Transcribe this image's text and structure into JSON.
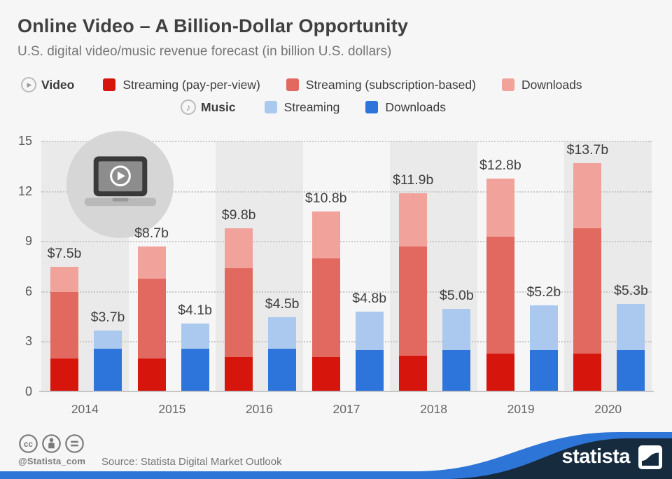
{
  "header": {
    "title": "Online Video – A Billion-Dollar Opportunity",
    "subtitle": "U.S. digital video/music revenue forecast (in billion U.S. dollars)"
  },
  "legend": {
    "video": {
      "label": "Video",
      "items": [
        {
          "label": "Streaming (pay-per-view)",
          "color_key": "video_ppv"
        },
        {
          "label": "Streaming (subscription-based)",
          "color_key": "video_sub"
        },
        {
          "label": "Downloads",
          "color_key": "video_dl"
        }
      ]
    },
    "music": {
      "label": "Music",
      "items": [
        {
          "label": "Streaming",
          "color_key": "music_stream"
        },
        {
          "label": "Downloads",
          "color_key": "music_dl"
        }
      ]
    }
  },
  "chart_data": {
    "type": "bar",
    "stacked": true,
    "title": "Online Video – A Billion-Dollar Opportunity",
    "categories": [
      "2014",
      "2015",
      "2016",
      "2017",
      "2018",
      "2019",
      "2020"
    ],
    "ylim": [
      0,
      15
    ],
    "yticks": [
      0,
      3,
      6,
      9,
      12,
      15
    ],
    "grid": "dotted horizontal",
    "legend_position": "top",
    "groups": [
      {
        "name": "Video",
        "totals": [
          7.5,
          8.7,
          9.8,
          10.8,
          11.9,
          12.8,
          13.7
        ],
        "total_labels": [
          "$7.5b",
          "$8.7b",
          "$9.8b",
          "$10.8b",
          "$11.9b",
          "$12.8b",
          "$13.7b"
        ],
        "series": [
          {
            "name": "Streaming (pay-per-view)",
            "color_key": "video_ppv",
            "values": [
              2.0,
              2.0,
              2.1,
              2.1,
              2.2,
              2.3,
              2.3
            ]
          },
          {
            "name": "Streaming (subscription-based)",
            "color_key": "video_sub",
            "values": [
              4.0,
              4.8,
              5.3,
              5.9,
              6.5,
              7.0,
              7.5
            ]
          },
          {
            "name": "Downloads",
            "color_key": "video_dl",
            "values": [
              1.5,
              1.9,
              2.4,
              2.8,
              3.2,
              3.5,
              3.9
            ]
          }
        ]
      },
      {
        "name": "Music",
        "totals": [
          3.7,
          4.1,
          4.5,
          4.8,
          5.0,
          5.2,
          5.3
        ],
        "total_labels": [
          "$3.7b",
          "$4.1b",
          "$4.5b",
          "$4.8b",
          "$5.0b",
          "$5.2b",
          "$5.3b"
        ],
        "series": [
          {
            "name": "Downloads",
            "color_key": "music_dl",
            "values": [
              2.6,
              2.6,
              2.6,
              2.5,
              2.5,
              2.5,
              2.5
            ]
          },
          {
            "name": "Streaming",
            "color_key": "music_stream",
            "values": [
              1.1,
              1.5,
              1.9,
              2.3,
              2.5,
              2.7,
              2.8
            ]
          }
        ]
      }
    ]
  },
  "footer": {
    "handle": "@Statista_com",
    "source": "Source: Statista Digital Market Outlook",
    "brand": "statista"
  },
  "colors": {
    "video_ppv": "#d6160d",
    "video_sub": "#e2695f",
    "video_dl": "#f0a29b",
    "music_stream": "#abc9ee",
    "music_dl": "#2d74db",
    "band_shaded": "#eaeaea",
    "accent_blue": "#2e75d8",
    "navy": "#172b3f"
  }
}
